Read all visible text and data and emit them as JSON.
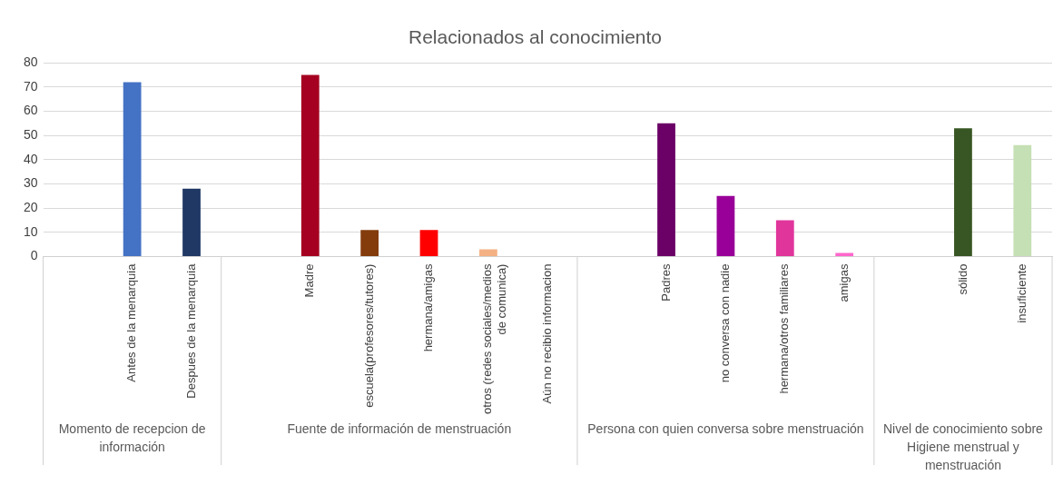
{
  "chart_data": {
    "type": "bar",
    "title": "Relacionados al conocimiento",
    "categories": [
      null,
      "Antes de la menarquia",
      "Despues de la menarquia",
      null,
      "Madre",
      "escuela(profesores/tutores)",
      "hermana/amigas",
      "otros (redes sociales/medios de comunica)",
      "Aún no recibio informacion",
      null,
      "Padres",
      "no conversa con nadie",
      "hermana/otros familiares",
      "amigas",
      null,
      "sólido",
      "insuficiente"
    ],
    "values": [
      null,
      72,
      28,
      null,
      75,
      11,
      11,
      3,
      0,
      null,
      55,
      25,
      15,
      1.5,
      null,
      53,
      46
    ],
    "colors": [
      "#4472c4",
      "#4472c4",
      "#1f3864",
      "#a50021",
      "#a50021",
      "#843c0c",
      "#ff0000",
      "#f4b183",
      "#f4b183",
      "#6b0066",
      "#6b0066",
      "#990099",
      "#e0359b",
      "#ff66cc",
      "#375623",
      "#375623",
      "#c5e0b4"
    ],
    "annotations": [
      "Momento de recepcion de información",
      "Fuente de información de menstruación",
      "Persona con quien conversa sobre menstruación",
      "Nivel de conocimiento sobre Higiene menstrual y menstruación"
    ],
    "ylim": [
      0,
      80
    ],
    "yticks": [
      0,
      10,
      20,
      30,
      40,
      50,
      60,
      70,
      80
    ],
    "grid": "y",
    "legend": false
  }
}
